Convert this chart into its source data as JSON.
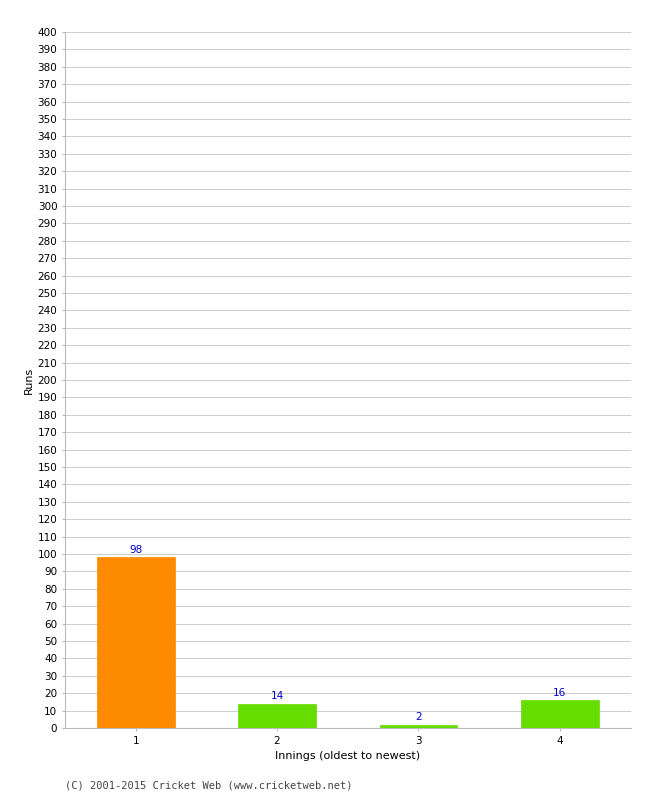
{
  "categories": [
    "1",
    "2",
    "3",
    "4"
  ],
  "values": [
    98,
    14,
    2,
    16
  ],
  "bar_colors": [
    "#ff8c00",
    "#66dd00",
    "#66dd00",
    "#66dd00"
  ],
  "ylabel": "Runs",
  "xlabel": "Innings (oldest to newest)",
  "ylim": [
    0,
    400
  ],
  "ytick_major_step": 10,
  "label_color": "#0000cc",
  "label_fontsize": 7.5,
  "axis_label_fontsize": 8,
  "tick_fontsize": 7.5,
  "footer_text": "(C) 2001-2015 Cricket Web (www.cricketweb.net)",
  "footer_fontsize": 7.5,
  "background_color": "#ffffff",
  "grid_color": "#cccccc",
  "bar_width": 0.55
}
